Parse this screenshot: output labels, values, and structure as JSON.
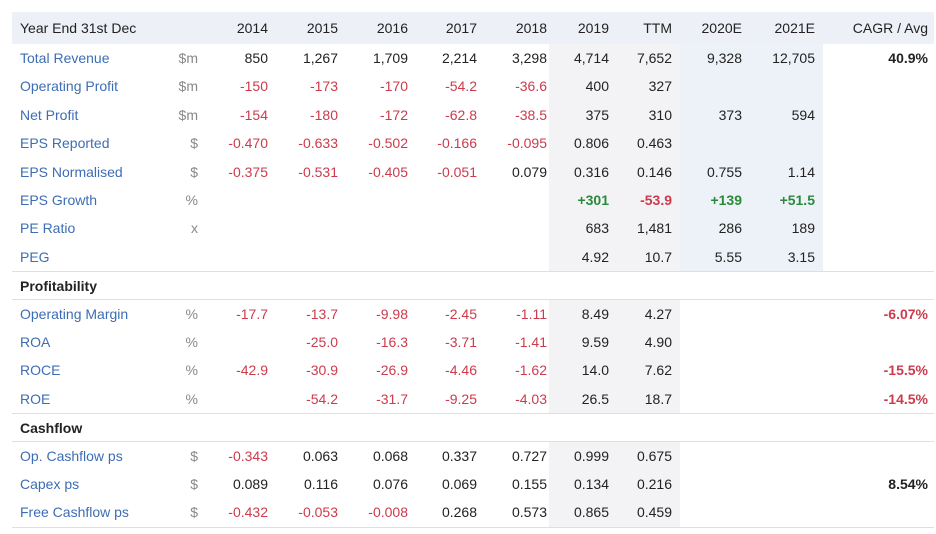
{
  "header": [
    "Year End 31st Dec",
    "2014",
    "2015",
    "2016",
    "2017",
    "2018",
    "2019",
    "TTM",
    "2020E",
    "2021E",
    "CAGR / Avg"
  ],
  "rows": [
    {
      "label": "Total Revenue",
      "unit": "$m",
      "cells": [
        "850",
        "1,267",
        "1,709",
        "2,214",
        "3,298",
        "4,714",
        "7,652",
        "9,328",
        "12,705",
        "40.9%"
      ]
    },
    {
      "label": "Operating Profit",
      "unit": "$m",
      "cells": [
        "-150",
        "-173",
        "-170",
        "-54.2",
        "-36.6",
        "400",
        "327",
        null,
        null,
        null
      ]
    },
    {
      "label": "Net Profit",
      "unit": "$m",
      "cells": [
        "-154",
        "-180",
        "-172",
        "-62.8",
        "-38.5",
        "375",
        "310",
        "373",
        "594",
        null
      ]
    },
    {
      "label": "EPS Reported",
      "unit": "$",
      "cells": [
        "-0.470",
        "-0.633",
        "-0.502",
        "-0.166",
        "-0.095",
        "0.806",
        "0.463",
        null,
        null,
        null
      ]
    },
    {
      "label": "EPS Normalised",
      "unit": "$",
      "cells": [
        "-0.375",
        "-0.531",
        "-0.405",
        "-0.051",
        "0.079",
        "0.316",
        "0.146",
        "0.755",
        "1.14",
        null
      ]
    },
    {
      "label": "EPS Growth",
      "unit": "%",
      "cells": [
        null,
        null,
        null,
        null,
        null,
        "+301",
        "-53.9",
        "+139",
        "+51.5",
        null
      ]
    },
    {
      "label": "PE Ratio",
      "unit": "x",
      "cells": [
        null,
        null,
        null,
        null,
        null,
        "683",
        "1,481",
        "286",
        "189",
        null
      ]
    },
    {
      "label": "PEG",
      "unit": null,
      "cells": [
        null,
        null,
        null,
        null,
        null,
        "4.92",
        "10.7",
        "5.55",
        "3.15",
        null
      ]
    },
    {
      "section": "Profitability"
    },
    {
      "label": "Operating Margin",
      "unit": "%",
      "cells": [
        "-17.7",
        "-13.7",
        "-9.98",
        "-2.45",
        "-1.11",
        "8.49",
        "4.27",
        null,
        null,
        "-6.07%"
      ]
    },
    {
      "label": "ROA",
      "unit": "%",
      "cells": [
        null,
        "-25.0",
        "-16.3",
        "-3.71",
        "-1.41",
        "9.59",
        "4.90",
        null,
        null,
        null
      ]
    },
    {
      "label": "ROCE",
      "unit": "%",
      "cells": [
        "-42.9",
        "-30.9",
        "-26.9",
        "-4.46",
        "-1.62",
        "14.0",
        "7.62",
        null,
        null,
        "-15.5%"
      ]
    },
    {
      "label": "ROE",
      "unit": "%",
      "cells": [
        null,
        "-54.2",
        "-31.7",
        "-9.25",
        "-4.03",
        "26.5",
        "18.7",
        null,
        null,
        "-14.5%"
      ]
    },
    {
      "section": "Cashflow"
    },
    {
      "label": "Op. Cashflow ps",
      "unit": "$",
      "cells": [
        "-0.343",
        "0.063",
        "0.068",
        "0.337",
        "0.727",
        "0.999",
        "0.675",
        null,
        null,
        null
      ]
    },
    {
      "label": "Capex ps",
      "unit": "$",
      "cells": [
        "0.089",
        "0.116",
        "0.076",
        "0.069",
        "0.155",
        "0.134",
        "0.216",
        null,
        null,
        "8.54%"
      ]
    },
    {
      "label": "Free Cashflow ps",
      "unit": "$",
      "cells": [
        "-0.432",
        "-0.053",
        "-0.008",
        "0.268",
        "0.573",
        "0.865",
        "0.459",
        null,
        null,
        null
      ]
    }
  ]
}
